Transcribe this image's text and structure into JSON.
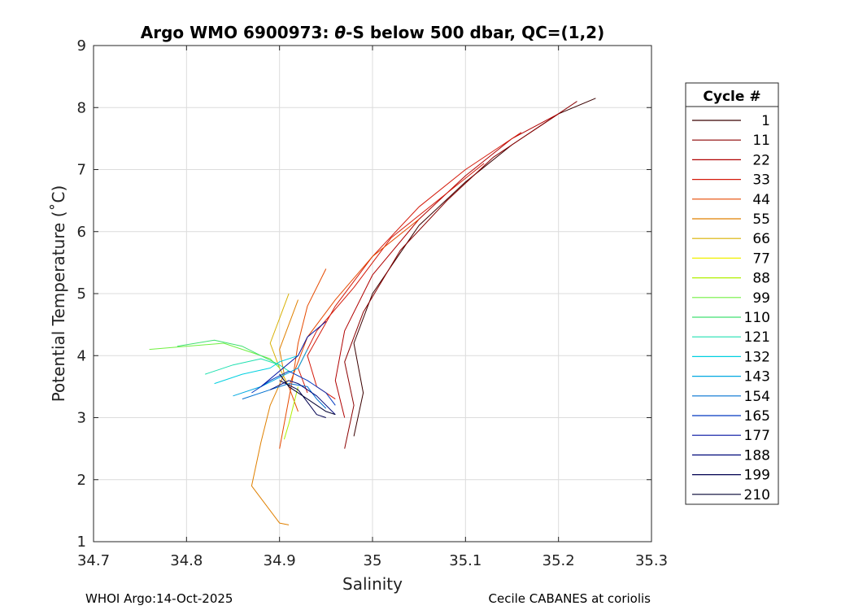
{
  "figure": {
    "title_prefix": "Argo WMO 6900973: ",
    "title_theta": "θ",
    "title_suffix": "-S below 500 dbar,  QC=(1,2)",
    "footer_left": "WHOI Argo:14-Oct-2025",
    "footer_right": "Cecile CABANES at coriolis"
  },
  "chart_data": {
    "type": "line",
    "title": "Argo WMO 6900973: θ-S below 500 dbar,  QC=(1,2)",
    "xlabel": "Salinity",
    "ylabel": "Potential Temperature (˚C)",
    "xlim": [
      34.7,
      35.3
    ],
    "ylim": [
      1,
      9
    ],
    "xticks": [
      "34.7",
      "34.8",
      "34.9",
      "35",
      "35.1",
      "35.2",
      "35.3"
    ],
    "yticks": [
      "1",
      "2",
      "3",
      "4",
      "5",
      "6",
      "7",
      "8",
      "9"
    ],
    "grid": true,
    "legend": {
      "title": "Cycle #",
      "placement": "right-outside",
      "entries": [
        {
          "label": "1",
          "color": "#3a0000"
        },
        {
          "label": "11",
          "color": "#8b0000"
        },
        {
          "label": "22",
          "color": "#b00000"
        },
        {
          "label": "33",
          "color": "#d41a0a"
        },
        {
          "label": "44",
          "color": "#e64a00"
        },
        {
          "label": "55",
          "color": "#e08000"
        },
        {
          "label": "66",
          "color": "#d8b000"
        },
        {
          "label": "77",
          "color": "#f0f000"
        },
        {
          "label": "88",
          "color": "#b0f000"
        },
        {
          "label": "99",
          "color": "#70f040"
        },
        {
          "label": "110",
          "color": "#40e070"
        },
        {
          "label": "121",
          "color": "#20e0b0"
        },
        {
          "label": "132",
          "color": "#00d0e0"
        },
        {
          "label": "143",
          "color": "#00a8e0"
        },
        {
          "label": "154",
          "color": "#0070d0"
        },
        {
          "label": "165",
          "color": "#0038c0"
        },
        {
          "label": "177",
          "color": "#0010a0"
        },
        {
          "label": "188",
          "color": "#00087a"
        },
        {
          "label": "199",
          "color": "#000050"
        },
        {
          "label": "210",
          "color": "#000030"
        }
      ]
    },
    "series": [
      {
        "color": "#3a0000",
        "x": [
          35.24,
          35.2,
          35.15,
          35.1,
          35.05,
          35.0,
          34.98,
          34.99,
          34.98
        ],
        "y": [
          8.15,
          7.9,
          7.4,
          6.8,
          6.1,
          5.0,
          4.2,
          3.4,
          2.7
        ]
      },
      {
        "color": "#8b0000",
        "x": [
          35.22,
          35.18,
          35.13,
          35.08,
          35.03,
          34.99,
          34.97,
          34.98,
          34.97
        ],
        "y": [
          8.1,
          7.7,
          7.2,
          6.5,
          5.7,
          4.7,
          3.9,
          3.2,
          2.5
        ]
      },
      {
        "color": "#b00000",
        "x": [
          35.2,
          35.15,
          35.1,
          35.05,
          35.0,
          34.97,
          34.96,
          34.97
        ],
        "y": [
          7.9,
          7.5,
          6.9,
          6.2,
          5.3,
          4.4,
          3.6,
          3.0
        ]
      },
      {
        "color": "#d41a0a",
        "x": [
          35.16,
          35.1,
          35.05,
          35.0,
          34.96,
          34.93,
          34.94,
          34.96
        ],
        "y": [
          7.6,
          7.0,
          6.4,
          5.6,
          4.8,
          4.0,
          3.5,
          3.3
        ]
      },
      {
        "color": "#d41a0a",
        "x": [
          35.12,
          35.07,
          35.02,
          34.98,
          34.94,
          34.92,
          34.93
        ],
        "y": [
          7.1,
          6.5,
          5.9,
          5.1,
          4.4,
          3.8,
          3.4
        ]
      },
      {
        "color": "#e64a00",
        "x": [
          35.05,
          35.0,
          34.96,
          34.93,
          34.92,
          34.91,
          34.92
        ],
        "y": [
          6.2,
          5.6,
          4.9,
          4.3,
          3.9,
          3.5,
          3.1
        ]
      },
      {
        "color": "#e64a00",
        "x": [
          34.95,
          34.93,
          34.92,
          34.915,
          34.91,
          34.9
        ],
        "y": [
          5.4,
          4.8,
          4.2,
          3.7,
          3.3,
          2.5
        ]
      },
      {
        "color": "#e08000",
        "x": [
          34.92,
          34.91,
          34.9,
          34.905,
          34.89,
          34.88,
          34.87,
          34.9,
          34.91
        ],
        "y": [
          4.9,
          4.5,
          4.1,
          3.7,
          3.2,
          2.6,
          1.9,
          1.3,
          1.27
        ]
      },
      {
        "color": "#d8b000",
        "x": [
          34.91,
          34.9,
          34.89,
          34.9,
          34.91
        ],
        "y": [
          5.0,
          4.6,
          4.2,
          3.8,
          3.5
        ]
      },
      {
        "color": "#b0f000",
        "x": [
          34.92,
          34.915,
          34.91,
          34.905
        ],
        "y": [
          3.5,
          3.2,
          2.9,
          2.65
        ]
      },
      {
        "color": "#70f040",
        "x": [
          34.76,
          34.8,
          34.84,
          34.87,
          34.89,
          34.9
        ],
        "y": [
          4.1,
          4.15,
          4.2,
          4.05,
          3.95,
          3.8
        ]
      },
      {
        "color": "#40e070",
        "x": [
          34.79,
          34.83,
          34.86,
          34.88,
          34.9
        ],
        "y": [
          4.15,
          4.25,
          4.15,
          4.0,
          3.85
        ]
      },
      {
        "color": "#20e0b0",
        "x": [
          34.82,
          34.85,
          34.88,
          34.9,
          34.91
        ],
        "y": [
          3.7,
          3.85,
          3.95,
          3.85,
          3.75
        ]
      },
      {
        "color": "#00d0e0",
        "x": [
          34.83,
          34.86,
          34.89,
          34.9,
          34.92
        ],
        "y": [
          3.55,
          3.7,
          3.8,
          3.9,
          4.0
        ]
      },
      {
        "color": "#00a8e0",
        "x": [
          34.85,
          34.88,
          34.9,
          34.92,
          34.93
        ],
        "y": [
          3.35,
          3.5,
          3.65,
          3.8,
          4.1
        ]
      },
      {
        "color": "#0070d0",
        "x": [
          34.86,
          34.89,
          34.91,
          34.93,
          34.94,
          34.95
        ],
        "y": [
          3.3,
          3.45,
          3.55,
          3.5,
          3.3,
          3.15
        ]
      },
      {
        "color": "#0038c0",
        "x": [
          34.87,
          34.89,
          34.91,
          34.93,
          34.95,
          34.96
        ],
        "y": [
          3.4,
          3.6,
          3.75,
          3.6,
          3.4,
          3.2
        ]
      },
      {
        "color": "#0010a0",
        "x": [
          34.88,
          34.9,
          34.92,
          34.93,
          34.95
        ],
        "y": [
          3.5,
          3.75,
          4.0,
          4.3,
          4.55
        ]
      },
      {
        "color": "#00087a",
        "x": [
          34.89,
          34.91,
          34.92,
          34.94,
          34.96
        ],
        "y": [
          3.45,
          3.6,
          3.55,
          3.35,
          3.05
        ]
      },
      {
        "color": "#000050",
        "x": [
          34.9,
          34.92,
          34.93,
          34.94,
          34.95
        ],
        "y": [
          3.6,
          3.45,
          3.25,
          3.05,
          3.0
        ]
      },
      {
        "color": "#000030",
        "x": [
          34.9,
          34.91,
          34.93,
          34.95,
          34.96
        ],
        "y": [
          3.7,
          3.5,
          3.3,
          3.1,
          3.05
        ]
      }
    ]
  }
}
